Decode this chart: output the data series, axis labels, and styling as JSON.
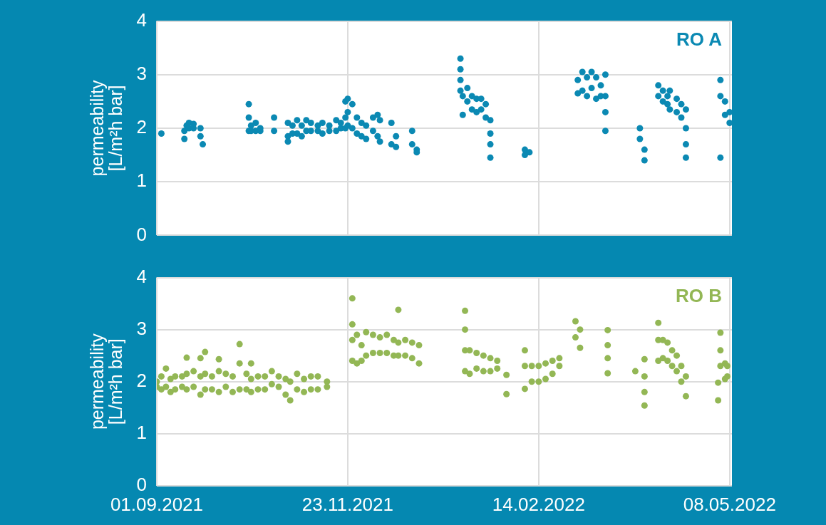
{
  "chart_data": [
    {
      "type": "scatter",
      "ylabel": "permeability\n[L/m²h bar]",
      "xlim": [
        "2021-09-01",
        "2022-05-09"
      ],
      "xticks": [
        {
          "value": "2021-09-01",
          "label": null
        },
        {
          "value": "2021-11-23",
          "label": null
        },
        {
          "value": "2022-02-14",
          "label": null
        },
        {
          "value": "2022-05-08",
          "label": null
        }
      ],
      "ylim": [
        0,
        4
      ],
      "yticks": [
        0,
        1,
        2,
        3,
        4
      ],
      "grid": true,
      "tick_labels": "y",
      "marker": "circle",
      "series": [
        {
          "name": "RO A",
          "color": "#0b89b3",
          "x": [
            "2021-09-03",
            "2021-09-13",
            "2021-09-13",
            "2021-09-14",
            "2021-09-15",
            "2021-09-15",
            "2021-09-17",
            "2021-09-17",
            "2021-09-20",
            "2021-09-20",
            "2021-09-21",
            "2021-10-11",
            "2021-10-11",
            "2021-10-11",
            "2021-10-12",
            "2021-10-12",
            "2021-10-14",
            "2021-10-14",
            "2021-10-16",
            "2021-10-16",
            "2021-10-22",
            "2021-10-22",
            "2021-10-28",
            "2021-10-28",
            "2021-10-28",
            "2021-10-30",
            "2021-10-30",
            "2021-11-01",
            "2021-11-01",
            "2021-11-03",
            "2021-11-03",
            "2021-11-05",
            "2021-11-05",
            "2021-11-07",
            "2021-11-07",
            "2021-11-10",
            "2021-11-10",
            "2021-11-12",
            "2021-11-12",
            "2021-11-15",
            "2021-11-15",
            "2021-11-18",
            "2021-11-18",
            "2021-11-20",
            "2021-11-20",
            "2021-11-22",
            "2021-11-22",
            "2021-11-22",
            "2021-11-23",
            "2021-11-23",
            "2021-11-23",
            "2021-11-25",
            "2021-11-25",
            "2021-11-27",
            "2021-11-27",
            "2021-11-29",
            "2021-11-29",
            "2021-12-01",
            "2021-12-01",
            "2021-12-04",
            "2021-12-04",
            "2021-12-06",
            "2021-12-06",
            "2021-12-07",
            "2021-12-07",
            "2021-12-12",
            "2021-12-12",
            "2021-12-14",
            "2021-12-14",
            "2021-12-21",
            "2021-12-21",
            "2021-12-23",
            "2021-12-23",
            "2022-01-11",
            "2022-01-11",
            "2022-01-11",
            "2022-01-11",
            "2022-01-12",
            "2022-01-12",
            "2022-01-14",
            "2022-01-14",
            "2022-01-16",
            "2022-01-16",
            "2022-01-18",
            "2022-01-18",
            "2022-01-20",
            "2022-01-20",
            "2022-01-22",
            "2022-01-22",
            "2022-01-24",
            "2022-01-24",
            "2022-01-24",
            "2022-01-24",
            "2022-02-08",
            "2022-02-08",
            "2022-02-10",
            "2022-03-03",
            "2022-03-03",
            "2022-03-05",
            "2022-03-05",
            "2022-03-07",
            "2022-03-07",
            "2022-03-09",
            "2022-03-09",
            "2022-03-11",
            "2022-03-11",
            "2022-03-13",
            "2022-03-13",
            "2022-03-15",
            "2022-03-15",
            "2022-03-15",
            "2022-03-15",
            "2022-03-30",
            "2022-03-30",
            "2022-04-01",
            "2022-04-01",
            "2022-04-07",
            "2022-04-07",
            "2022-04-09",
            "2022-04-09",
            "2022-04-11",
            "2022-04-11",
            "2022-04-12",
            "2022-04-12",
            "2022-04-15",
            "2022-04-15",
            "2022-04-17",
            "2022-04-17",
            "2022-04-19",
            "2022-04-19",
            "2022-04-19",
            "2022-04-19",
            "2022-05-04",
            "2022-05-04",
            "2022-05-04",
            "2022-05-06",
            "2022-05-06",
            "2022-05-08",
            "2022-05-08"
          ],
          "values": [
            1.9,
            1.8,
            1.95,
            2.05,
            2.1,
            2.0,
            2.08,
            2.0,
            2.0,
            1.85,
            1.7,
            2.45,
            2.2,
            1.95,
            2.05,
            1.95,
            2.1,
            1.95,
            2.0,
            1.95,
            2.2,
            1.95,
            2.1,
            1.85,
            1.75,
            2.05,
            1.9,
            2.15,
            1.9,
            2.05,
            1.85,
            2.15,
            1.95,
            2.1,
            1.95,
            2.05,
            1.95,
            2.1,
            1.9,
            2.05,
            1.95,
            2.15,
            1.95,
            2.1,
            2.0,
            2.5,
            2.2,
            2.0,
            2.55,
            2.3,
            2.05,
            2.45,
            2.0,
            2.2,
            1.9,
            2.1,
            1.85,
            2.05,
            1.8,
            2.2,
            1.95,
            2.25,
            1.85,
            2.15,
            1.75,
            2.1,
            1.7,
            1.85,
            1.65,
            1.95,
            1.7,
            1.6,
            1.55,
            3.3,
            3.1,
            2.9,
            2.7,
            2.6,
            2.25,
            2.75,
            2.5,
            2.6,
            2.35,
            2.55,
            2.3,
            2.55,
            2.35,
            2.45,
            2.2,
            2.15,
            1.9,
            1.7,
            1.45,
            1.6,
            1.5,
            1.55,
            2.9,
            2.65,
            3.05,
            2.7,
            2.95,
            2.6,
            3.05,
            2.75,
            2.95,
            2.55,
            2.8,
            2.6,
            3.0,
            2.6,
            2.3,
            1.95,
            2.0,
            1.8,
            1.6,
            1.4,
            2.8,
            2.6,
            2.7,
            2.5,
            2.6,
            2.45,
            2.7,
            2.35,
            2.55,
            2.3,
            2.45,
            2.2,
            2.35,
            2.0,
            1.7,
            1.45,
            2.9,
            2.6,
            1.45,
            2.5,
            2.25,
            2.3,
            2.1
          ]
        }
      ]
    },
    {
      "type": "scatter",
      "ylabel": "permeability\n[L/m²h bar]",
      "xlim": [
        "2021-09-01",
        "2022-05-09"
      ],
      "xticks": [
        {
          "value": "2021-09-01",
          "label": "01.09.2021"
        },
        {
          "value": "2021-11-23",
          "label": "23.11.2021"
        },
        {
          "value": "2022-02-14",
          "label": "14.02.2022"
        },
        {
          "value": "2022-05-08",
          "label": "08.05.2022"
        }
      ],
      "ylim": [
        0,
        4
      ],
      "yticks": [
        0,
        1,
        2,
        3,
        4
      ],
      "grid": true,
      "marker": "circle",
      "series": [
        {
          "name": "RO B",
          "color": "#93b755",
          "x": [
            "2021-09-01",
            "2021-09-01",
            "2021-09-03",
            "2021-09-03",
            "2021-09-05",
            "2021-09-05",
            "2021-09-07",
            "2021-09-07",
            "2021-09-09",
            "2021-09-09",
            "2021-09-12",
            "2021-09-12",
            "2021-09-14",
            "2021-09-14",
            "2021-09-14",
            "2021-09-17",
            "2021-09-17",
            "2021-09-20",
            "2021-09-20",
            "2021-09-20",
            "2021-09-22",
            "2021-09-22",
            "2021-09-22",
            "2021-09-25",
            "2021-09-25",
            "2021-09-28",
            "2021-09-28",
            "2021-09-28",
            "2021-10-01",
            "2021-10-01",
            "2021-10-04",
            "2021-10-04",
            "2021-10-07",
            "2021-10-07",
            "2021-10-07",
            "2021-10-10",
            "2021-10-10",
            "2021-10-12",
            "2021-10-12",
            "2021-10-12",
            "2021-10-15",
            "2021-10-15",
            "2021-10-18",
            "2021-10-18",
            "2021-10-21",
            "2021-10-21",
            "2021-10-24",
            "2021-10-24",
            "2021-10-27",
            "2021-10-27",
            "2021-10-29",
            "2021-10-29",
            "2021-11-01",
            "2021-11-01",
            "2021-11-04",
            "2021-11-04",
            "2021-11-07",
            "2021-11-07",
            "2021-11-10",
            "2021-11-10",
            "2021-11-14",
            "2021-11-14",
            "2021-11-25",
            "2021-11-25",
            "2021-11-25",
            "2021-11-25",
            "2021-11-27",
            "2021-11-27",
            "2021-11-29",
            "2021-11-29",
            "2021-12-01",
            "2021-12-01",
            "2021-12-04",
            "2021-12-04",
            "2021-12-07",
            "2021-12-07",
            "2021-12-10",
            "2021-12-10",
            "2021-12-13",
            "2021-12-13",
            "2021-12-15",
            "2021-12-15",
            "2021-12-15",
            "2021-12-18",
            "2021-12-18",
            "2021-12-21",
            "2021-12-21",
            "2021-12-24",
            "2021-12-24",
            "2022-01-13",
            "2022-01-13",
            "2022-01-13",
            "2022-01-13",
            "2022-01-15",
            "2022-01-15",
            "2022-01-18",
            "2022-01-18",
            "2022-01-21",
            "2022-01-21",
            "2022-01-24",
            "2022-01-24",
            "2022-01-27",
            "2022-01-27",
            "2022-01-31",
            "2022-01-31",
            "2022-02-08",
            "2022-02-08",
            "2022-02-08",
            "2022-02-11",
            "2022-02-11",
            "2022-02-14",
            "2022-02-14",
            "2022-02-17",
            "2022-02-17",
            "2022-02-20",
            "2022-02-20",
            "2022-02-23",
            "2022-02-23",
            "2022-03-02",
            "2022-03-02",
            "2022-03-04",
            "2022-03-04",
            "2022-03-16",
            "2022-03-16",
            "2022-03-16",
            "2022-03-16",
            "2022-03-28",
            "2022-04-01",
            "2022-04-01",
            "2022-04-01",
            "2022-04-01",
            "2022-04-07",
            "2022-04-07",
            "2022-04-07",
            "2022-04-09",
            "2022-04-09",
            "2022-04-11",
            "2022-04-11",
            "2022-04-13",
            "2022-04-13",
            "2022-04-15",
            "2022-04-15",
            "2022-04-17",
            "2022-04-17",
            "2022-04-19",
            "2022-04-19",
            "2022-05-03",
            "2022-05-03",
            "2022-05-04",
            "2022-05-04",
            "2022-05-04",
            "2022-05-06",
            "2022-05-06",
            "2022-05-07",
            "2022-05-07"
          ],
          "values": [
            2.0,
            1.9,
            2.1,
            1.85,
            2.25,
            1.9,
            2.05,
            1.8,
            2.1,
            1.85,
            2.1,
            1.9,
            2.46,
            2.15,
            1.85,
            2.2,
            1.9,
            2.45,
            2.1,
            1.75,
            2.57,
            2.15,
            1.85,
            2.1,
            1.85,
            2.43,
            2.2,
            1.8,
            2.15,
            1.9,
            2.1,
            1.8,
            2.72,
            2.35,
            1.85,
            2.15,
            1.85,
            2.35,
            2.05,
            1.8,
            2.1,
            1.85,
            2.1,
            1.85,
            2.2,
            1.95,
            2.1,
            1.9,
            2.05,
            1.75,
            1.64,
            2.0,
            2.15,
            1.85,
            2.05,
            1.8,
            2.1,
            1.85,
            2.1,
            1.85,
            2.0,
            1.9,
            3.6,
            3.1,
            2.8,
            2.4,
            2.9,
            2.35,
            2.7,
            2.4,
            2.95,
            2.5,
            2.9,
            2.55,
            2.85,
            2.55,
            2.9,
            2.55,
            2.8,
            2.5,
            3.38,
            2.75,
            2.5,
            2.8,
            2.5,
            2.75,
            2.45,
            2.7,
            2.35,
            3.36,
            3.0,
            2.6,
            2.2,
            2.6,
            2.15,
            2.55,
            2.25,
            2.5,
            2.2,
            2.45,
            2.2,
            2.4,
            2.25,
            2.13,
            1.76,
            2.6,
            2.3,
            1.86,
            2.3,
            2.0,
            2.3,
            2.0,
            2.35,
            2.05,
            2.4,
            2.15,
            2.45,
            2.3,
            3.16,
            2.85,
            3.0,
            2.65,
            2.99,
            2.7,
            2.45,
            2.16,
            2.2,
            2.43,
            2.1,
            1.8,
            1.54,
            3.13,
            2.8,
            2.4,
            2.8,
            2.45,
            2.75,
            2.4,
            2.6,
            2.3,
            2.5,
            2.2,
            2.3,
            2.0,
            2.1,
            1.72,
            1.98,
            1.64,
            2.94,
            2.6,
            2.3,
            2.35,
            2.05,
            2.3,
            2.1
          ]
        }
      ]
    }
  ]
}
